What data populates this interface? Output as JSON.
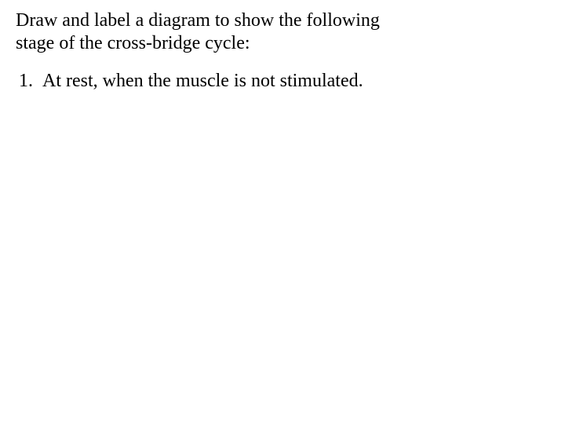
{
  "heading": {
    "line1": "Draw and label a diagram to show the following",
    "line2": "stage of the cross-bridge cycle:"
  },
  "items": [
    "At rest, when the muscle is not stimulated."
  ],
  "colors": {
    "background": "#ffffff",
    "text": "#000000"
  },
  "typography": {
    "family": "Times New Roman",
    "heading_fontsize": 24,
    "list_fontsize": 24
  }
}
